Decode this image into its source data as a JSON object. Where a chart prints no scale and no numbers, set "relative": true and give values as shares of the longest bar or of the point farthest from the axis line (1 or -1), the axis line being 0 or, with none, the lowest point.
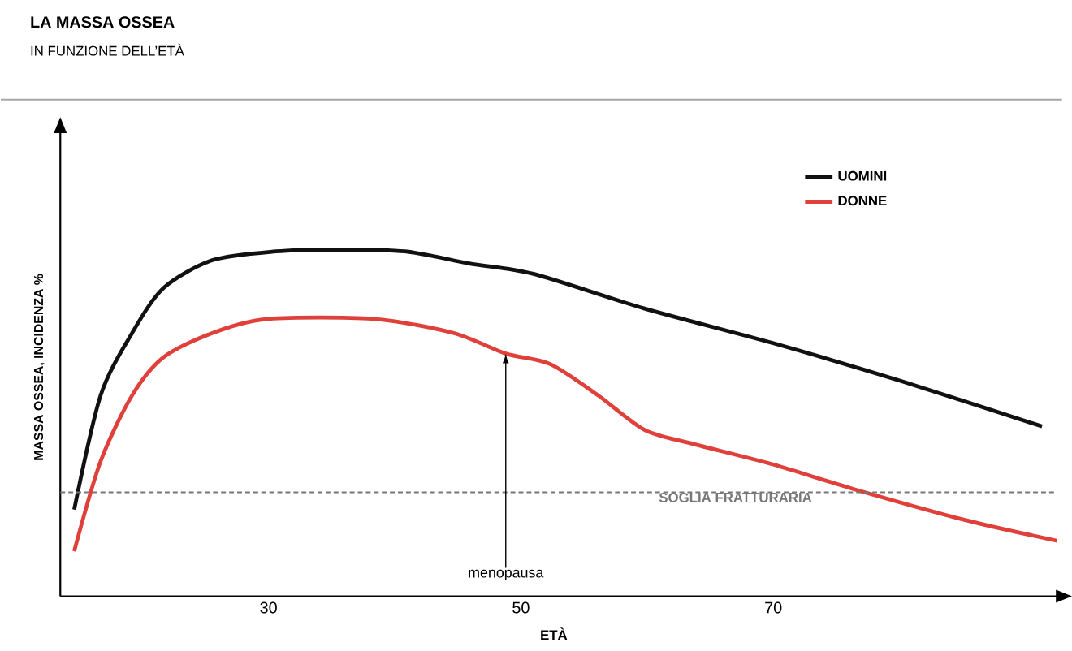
{
  "chart_data": {
    "type": "line",
    "title": "LA MASSA OSSEA",
    "subtitle": "IN FUNZIONE DELL’ETÀ",
    "xlabel": "ETÀ",
    "ylabel": "MASSA OSSEA, INCIDENZA %",
    "relative": true,
    "xlim": [
      13.5,
      92.5
    ],
    "xticks": [
      30,
      50,
      70
    ],
    "legend": "top right",
    "marker": "none",
    "line_style": "solid",
    "grid": false,
    "series": [
      {
        "name": "UOMINI",
        "color": "#111111",
        "x": [
          14.6,
          16.7,
          19.2,
          21.7,
          25.6,
          30.6,
          35,
          40.8,
          45.9,
          51,
          59.8,
          70,
          80.2,
          91.3
        ],
        "values": [
          0.25,
          0.58,
          0.76,
          0.89,
          0.97,
          0.995,
          1,
          0.995,
          0.96,
          0.93,
          0.83,
          0.73,
          0.62,
          0.49
        ]
      },
      {
        "name": "DONNE",
        "color": "#e0403a",
        "x": [
          14.6,
          16.7,
          19.2,
          21.7,
          25.6,
          30,
          38.3,
          44.6,
          48.8,
          52.3,
          56.1,
          59.8,
          63.6,
          70,
          76.3,
          85.2,
          92.5
        ],
        "values": [
          0.13,
          0.39,
          0.58,
          0.69,
          0.76,
          0.8,
          0.8,
          0.76,
          0.7,
          0.67,
          0.58,
          0.48,
          0.44,
          0.38,
          0.31,
          0.22,
          0.16
        ]
      }
    ],
    "ref_lines": [
      {
        "axis": "y",
        "value": 0.3,
        "label": "SOGLIA FRATTURARIA",
        "color": "#777777",
        "line_style": "dashed"
      }
    ],
    "annotations": [
      {
        "text": "menopausa",
        "x": 48.8,
        "y": 0.7
      }
    ]
  }
}
